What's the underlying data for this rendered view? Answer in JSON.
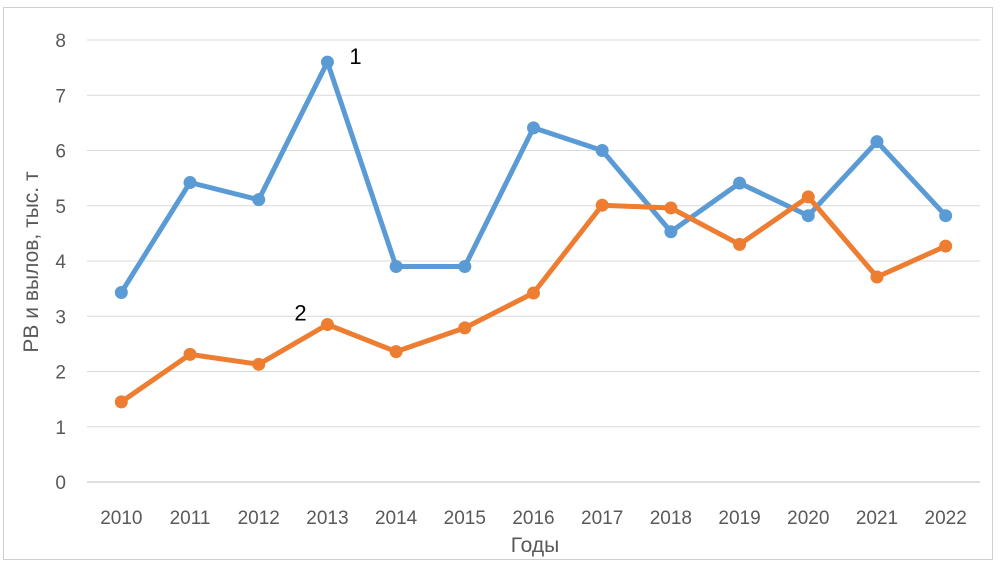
{
  "chart_data": {
    "type": "line",
    "title": "",
    "xlabel": "Годы",
    "ylabel": "РВ и вылов, тыс. т",
    "categories": [
      "2010",
      "2011",
      "2012",
      "2013",
      "2014",
      "2015",
      "2016",
      "2017",
      "2018",
      "2019",
      "2020",
      "2021",
      "2022"
    ],
    "ylim": [
      0,
      8
    ],
    "yticks": [
      "0",
      "1",
      "2",
      "3",
      "4",
      "5",
      "6",
      "7",
      "8"
    ],
    "grid": true,
    "legend": "none",
    "series": [
      {
        "label": "1",
        "color": "#5b9bd5",
        "values": [
          3.43,
          5.42,
          5.11,
          7.6,
          3.9,
          3.9,
          6.41,
          6.0,
          4.53,
          5.41,
          4.82,
          6.16,
          4.82
        ]
      },
      {
        "label": "2",
        "color": "#ed7d31",
        "values": [
          1.45,
          2.31,
          2.13,
          2.85,
          2.36,
          2.79,
          3.42,
          5.01,
          4.96,
          4.3,
          5.16,
          3.71,
          4.27
        ]
      }
    ]
  }
}
